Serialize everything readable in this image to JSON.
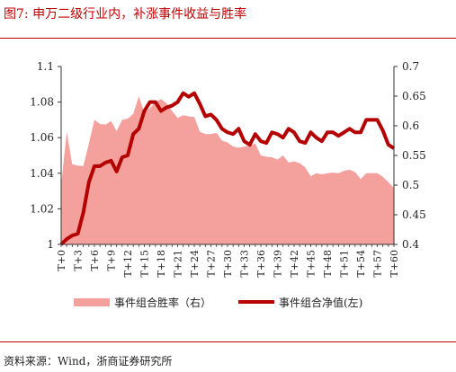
{
  "figure": {
    "title": "图7:   申万二级行业内，补涨事件收益与胜率",
    "source": "资料来源：Wind，浙商证券研究所"
  },
  "chart_data": {
    "type": "area",
    "x": [
      "T+0",
      "T+1",
      "T+2",
      "T+3",
      "T+4",
      "T+5",
      "T+6",
      "T+7",
      "T+8",
      "T+9",
      "T+10",
      "T+11",
      "T+12",
      "T+13",
      "T+14",
      "T+15",
      "T+16",
      "T+17",
      "T+18",
      "T+19",
      "T+20",
      "T+21",
      "T+22",
      "T+23",
      "T+24",
      "T+25",
      "T+26",
      "T+27",
      "T+28",
      "T+29",
      "T+30",
      "T+31",
      "T+32",
      "T+33",
      "T+34",
      "T+35",
      "T+36",
      "T+37",
      "T+38",
      "T+39",
      "T+40",
      "T+41",
      "T+42",
      "T+43",
      "T+44",
      "T+45",
      "T+46",
      "T+47",
      "T+48",
      "T+49",
      "T+50",
      "T+51",
      "T+52",
      "T+53",
      "T+54",
      "T+55",
      "T+56",
      "T+57",
      "T+58",
      "T+59",
      "T+60"
    ],
    "x_tick_labels": [
      "T+0",
      "T+3",
      "T+6",
      "T+9",
      "T+12",
      "T+15",
      "T+18",
      "T+21",
      "T+24",
      "T+27",
      "T+30",
      "T+33",
      "T+36",
      "T+39",
      "T+42",
      "T+45",
      "T+48",
      "T+51",
      "T+54",
      "T+57",
      "T+60"
    ],
    "series": [
      {
        "name": "事件组合胜率（右）",
        "type": "area",
        "axis": "right",
        "color": "#f4a09c",
        "values": [
          0.5,
          0.59,
          0.535,
          0.533,
          0.532,
          0.57,
          0.61,
          0.603,
          0.602,
          0.608,
          0.591,
          0.61,
          0.612,
          0.62,
          0.65,
          0.622,
          0.63,
          0.64,
          0.645,
          0.638,
          0.625,
          0.613,
          0.618,
          0.616,
          0.615,
          0.59,
          0.586,
          0.586,
          0.588,
          0.575,
          0.572,
          0.565,
          0.563,
          0.565,
          0.567,
          0.57,
          0.55,
          0.548,
          0.547,
          0.543,
          0.55,
          0.538,
          0.54,
          0.537,
          0.53,
          0.515,
          0.52,
          0.518,
          0.52,
          0.521,
          0.52,
          0.524,
          0.526,
          0.522,
          0.51,
          0.52,
          0.52,
          0.52,
          0.514,
          0.505,
          0.495
        ]
      },
      {
        "name": "事件组合净值(左)",
        "type": "line",
        "axis": "left",
        "color": "#b40000",
        "values": [
          1.0,
          1.003,
          1.005,
          1.006,
          1.018,
          1.035,
          1.044,
          1.044,
          1.046,
          1.047,
          1.041,
          1.049,
          1.05,
          1.062,
          1.065,
          1.075,
          1.08,
          1.08,
          1.075,
          1.077,
          1.078,
          1.08,
          1.085,
          1.083,
          1.085,
          1.079,
          1.072,
          1.073,
          1.07,
          1.065,
          1.063,
          1.062,
          1.065,
          1.058,
          1.056,
          1.062,
          1.058,
          1.057,
          1.063,
          1.062,
          1.06,
          1.065,
          1.063,
          1.058,
          1.057,
          1.063,
          1.06,
          1.058,
          1.063,
          1.063,
          1.061,
          1.063,
          1.065,
          1.063,
          1.063,
          1.07,
          1.07,
          1.07,
          1.064,
          1.056,
          1.054
        ]
      }
    ],
    "y_left": {
      "min": 1.0,
      "max": 1.1,
      "ticks": [
        "1",
        "1.02",
        "1.04",
        "1.06",
        "1.08",
        "1.1"
      ]
    },
    "y_right": {
      "min": 0.4,
      "max": 0.7,
      "ticks": [
        "0.4",
        "0.45",
        "0.5",
        "0.55",
        "0.6",
        "0.65",
        "0.7"
      ]
    },
    "legend": {
      "position": "bottom",
      "items": [
        "事件组合胜率（右）",
        "事件组合净值(左)"
      ]
    },
    "grid": false
  }
}
